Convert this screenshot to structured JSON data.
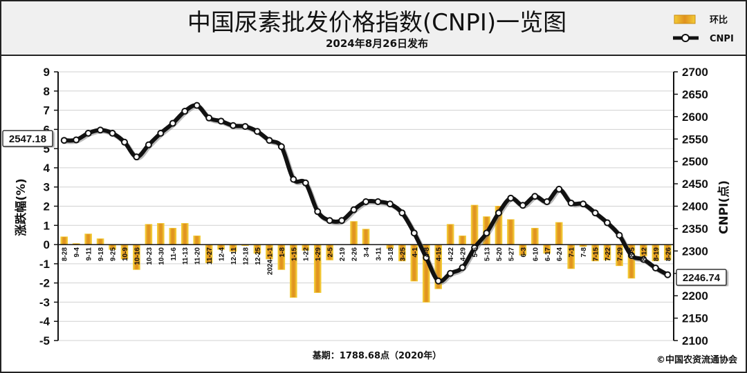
{
  "chart_data": {
    "type": "bar+line",
    "title": "中国尿素批发价格指数(CNPI)一览图",
    "subtitle": "2024年8月26日发布",
    "legend": [
      {
        "label": "环比",
        "kind": "bar"
      },
      {
        "label": "CNPI",
        "kind": "line"
      }
    ],
    "ylabel_left": "涨跌幅(%)",
    "ylabel_right": "CNPI(点)",
    "ylim_left": [
      -5,
      9
    ],
    "ylim_right": [
      2100,
      2700
    ],
    "yticks_left": [
      "-5",
      "-4",
      "-3",
      "-2",
      "-1",
      "0",
      "1",
      "2",
      "3",
      "4",
      "5",
      "6",
      "7",
      "8",
      "9"
    ],
    "yticks_right": [
      "2100",
      "2150",
      "2200",
      "2250",
      "2300",
      "2350",
      "2400",
      "2450",
      "2500",
      "2550",
      "2600",
      "2650",
      "2700"
    ],
    "x_labels_shown": [
      "8-28",
      "9-4",
      "9-11",
      "9-18",
      "9-25",
      "10-9",
      "10-16",
      "10-23",
      "10-30",
      "11-6",
      "11-13",
      "11-20",
      "11-27",
      "12-4",
      "12-11",
      "12-18",
      "12-25",
      "2024-1-1",
      "1-8",
      "1-15",
      "1-22",
      "1-29",
      "2-5",
      "2-19",
      "2-26",
      "3-4",
      "3-11",
      "3-18",
      "3-25",
      "4-1",
      "4-8",
      "4-15",
      "4-22",
      "4-29",
      "5-6",
      "5-13",
      "5-20",
      "5-27",
      "6-3",
      "6-10",
      "6-17",
      "6-24",
      "7-1",
      "7-8",
      "7-15",
      "7-22",
      "7-29",
      "8-5",
      "8-12",
      "8-19",
      "8-26"
    ],
    "cnpi_values": [
      2547,
      2548,
      2563,
      2570,
      2563,
      2543,
      2510,
      2537,
      2563,
      2585,
      2612,
      2625,
      2597,
      2590,
      2580,
      2578,
      2567,
      2547,
      2533,
      2460,
      2452,
      2388,
      2368,
      2368,
      2392,
      2410,
      2410,
      2405,
      2385,
      2340,
      2285,
      2233,
      2250,
      2263,
      2307,
      2340,
      2385,
      2418,
      2402,
      2422,
      2410,
      2438,
      2407,
      2405,
      2385,
      2363,
      2335,
      2290,
      2281,
      2262,
      2247
    ],
    "change_pct": [
      0.4,
      0.05,
      0.55,
      0.3,
      -0.25,
      -0.75,
      -1.3,
      1.05,
      1.1,
      0.85,
      1.1,
      0.45,
      -0.95,
      -0.25,
      -0.35,
      -0.05,
      -0.45,
      -0.75,
      -1.3,
      -2.75,
      -0.3,
      -2.5,
      -0.8,
      0.0,
      1.2,
      0.8,
      0.0,
      -0.2,
      -0.85,
      -1.9,
      -3.0,
      -2.3,
      1.05,
      0.45,
      2.05,
      1.45,
      2.0,
      1.3,
      -0.55,
      0.85,
      -0.45,
      1.15,
      -1.25,
      -0.1,
      -0.85,
      -0.8,
      -1.1,
      -1.75,
      -0.6,
      -0.85,
      -0.8
    ],
    "callouts": {
      "start_value": "2547.18",
      "end_value": "2246.74"
    },
    "grid": true,
    "legend_position": "top-right"
  },
  "footer": {
    "base": "基期：1788.68点（2020年）",
    "copyright": "©中国农资流通协会"
  },
  "colors": {
    "bar_fill": "#e0911f",
    "bar_edge": "#f3cc36",
    "line": "#111111",
    "marker_fill": "#ffffff",
    "header_bg": "#f0f0f0",
    "plot_bg": "#ffffff",
    "grid": "#d0d0d0"
  }
}
